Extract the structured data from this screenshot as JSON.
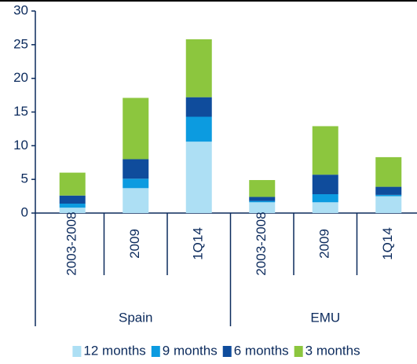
{
  "chart_data": {
    "type": "stacked-bar",
    "categories": [
      "2003-2008",
      "2009",
      "1Q14",
      "2003-2008",
      "2009",
      "1Q14"
    ],
    "category_groups": [
      "Spain",
      "Spain",
      "Spain",
      "EMU",
      "EMU",
      "EMU"
    ],
    "series": [
      {
        "name": "12 months",
        "color": "#addff4",
        "values": [
          0.8,
          3.7,
          10.6,
          1.6,
          1.6,
          2.5
        ]
      },
      {
        "name": "9 months",
        "color": "#0c9be0",
        "values": [
          0.6,
          1.4,
          3.7,
          0.2,
          1.2,
          0.2
        ]
      },
      {
        "name": "6 months",
        "color": "#0f4c9c",
        "values": [
          1.2,
          2.9,
          2.9,
          0.6,
          2.9,
          1.2
        ]
      },
      {
        "name": "3 months",
        "color": "#8cc63e",
        "values": [
          3.4,
          9.1,
          8.6,
          2.5,
          7.2,
          4.4
        ]
      }
    ],
    "ylim": [
      0,
      30
    ],
    "yticks": [
      0,
      5,
      10,
      15,
      20,
      25,
      30
    ],
    "legend": "bottom"
  }
}
